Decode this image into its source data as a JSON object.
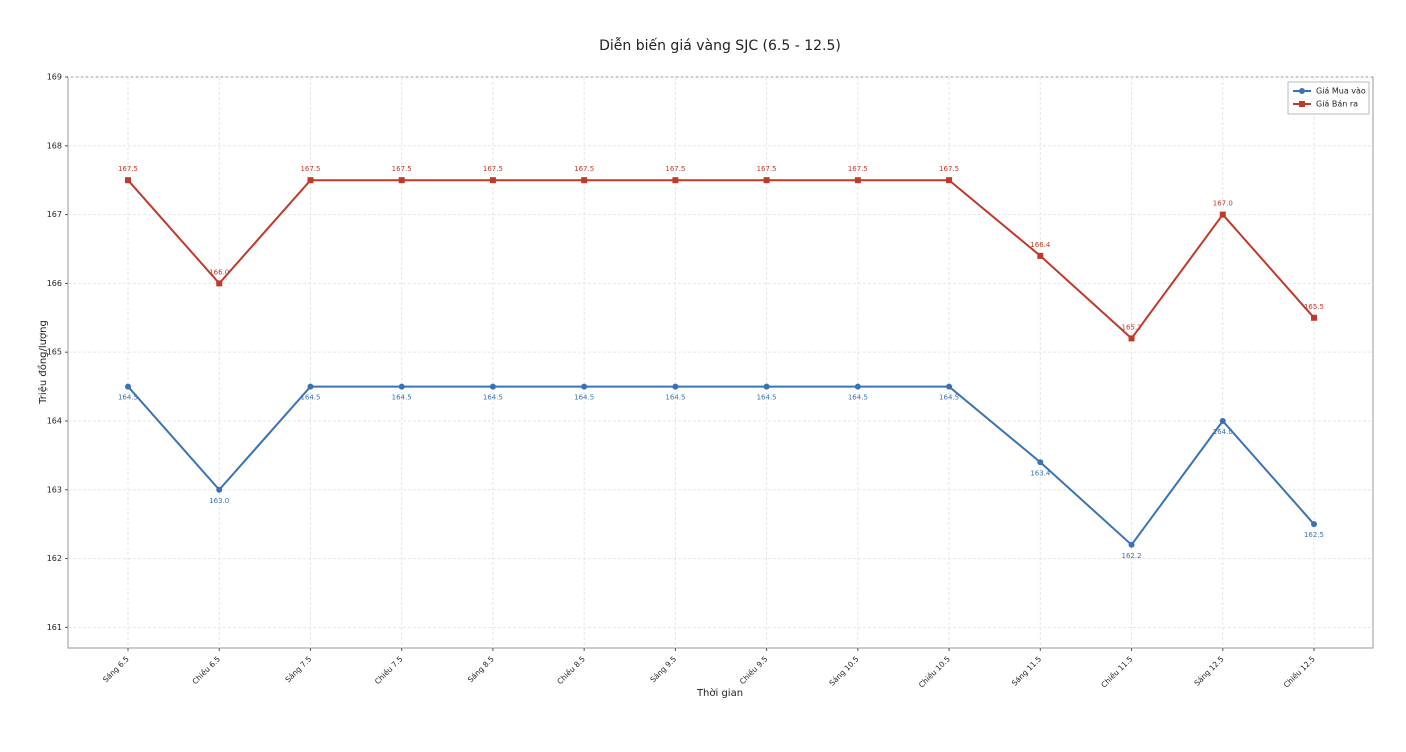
{
  "chart_data": {
    "type": "line",
    "title": "Diễn biến giá vàng SJC (6.5 - 12.5)",
    "x_label": "Thời gian",
    "y_label": "Triệu đồng/lượng",
    "categories": [
      "Sáng 6.5",
      "Chiều 6.5",
      "Sáng 7.5",
      "Chiều 7.5",
      "Sáng 8.5",
      "Chiều 8.5",
      "Sáng 9.5",
      "Chiều 9.5",
      "Sáng 10.5",
      "Chiều 10.5",
      "Sáng 11.5",
      "Chiều 11.5",
      "Sáng 12.5",
      "Chiều 12.5"
    ],
    "series": [
      {
        "name": "Giá Mua vào",
        "color": "#3a73b3",
        "marker": "circle",
        "values": [
          164.5,
          163.0,
          164.5,
          164.5,
          164.5,
          164.5,
          164.5,
          164.5,
          164.5,
          164.5,
          163.4,
          162.2,
          164.0,
          162.5
        ],
        "value_labels": [
          "164.5",
          "163.0",
          "164.5",
          "164.5",
          "164.5",
          "164.5",
          "164.5",
          "164.5",
          "164.5",
          "164.5",
          "163.4",
          "162.2",
          "164.0",
          "162.5"
        ]
      },
      {
        "name": "Giá Bán ra",
        "color": "#c0392b",
        "marker": "square",
        "values": [
          167.5,
          166.0,
          167.5,
          167.5,
          167.5,
          167.5,
          167.5,
          167.5,
          167.5,
          167.5,
          166.4,
          165.2,
          167.0,
          165.5
        ],
        "value_labels": [
          "167.5",
          "166.0",
          "167.5",
          "167.5",
          "167.5",
          "167.5",
          "167.5",
          "167.5",
          "167.5",
          "167.5",
          "166.4",
          "165.2",
          "167.0",
          "165.5"
        ]
      }
    ],
    "ylim": [
      160.7,
      169
    ],
    "yticks": [
      161,
      162,
      163,
      164,
      165,
      166,
      167,
      168,
      169
    ],
    "grid": true,
    "legend": "upper right"
  }
}
